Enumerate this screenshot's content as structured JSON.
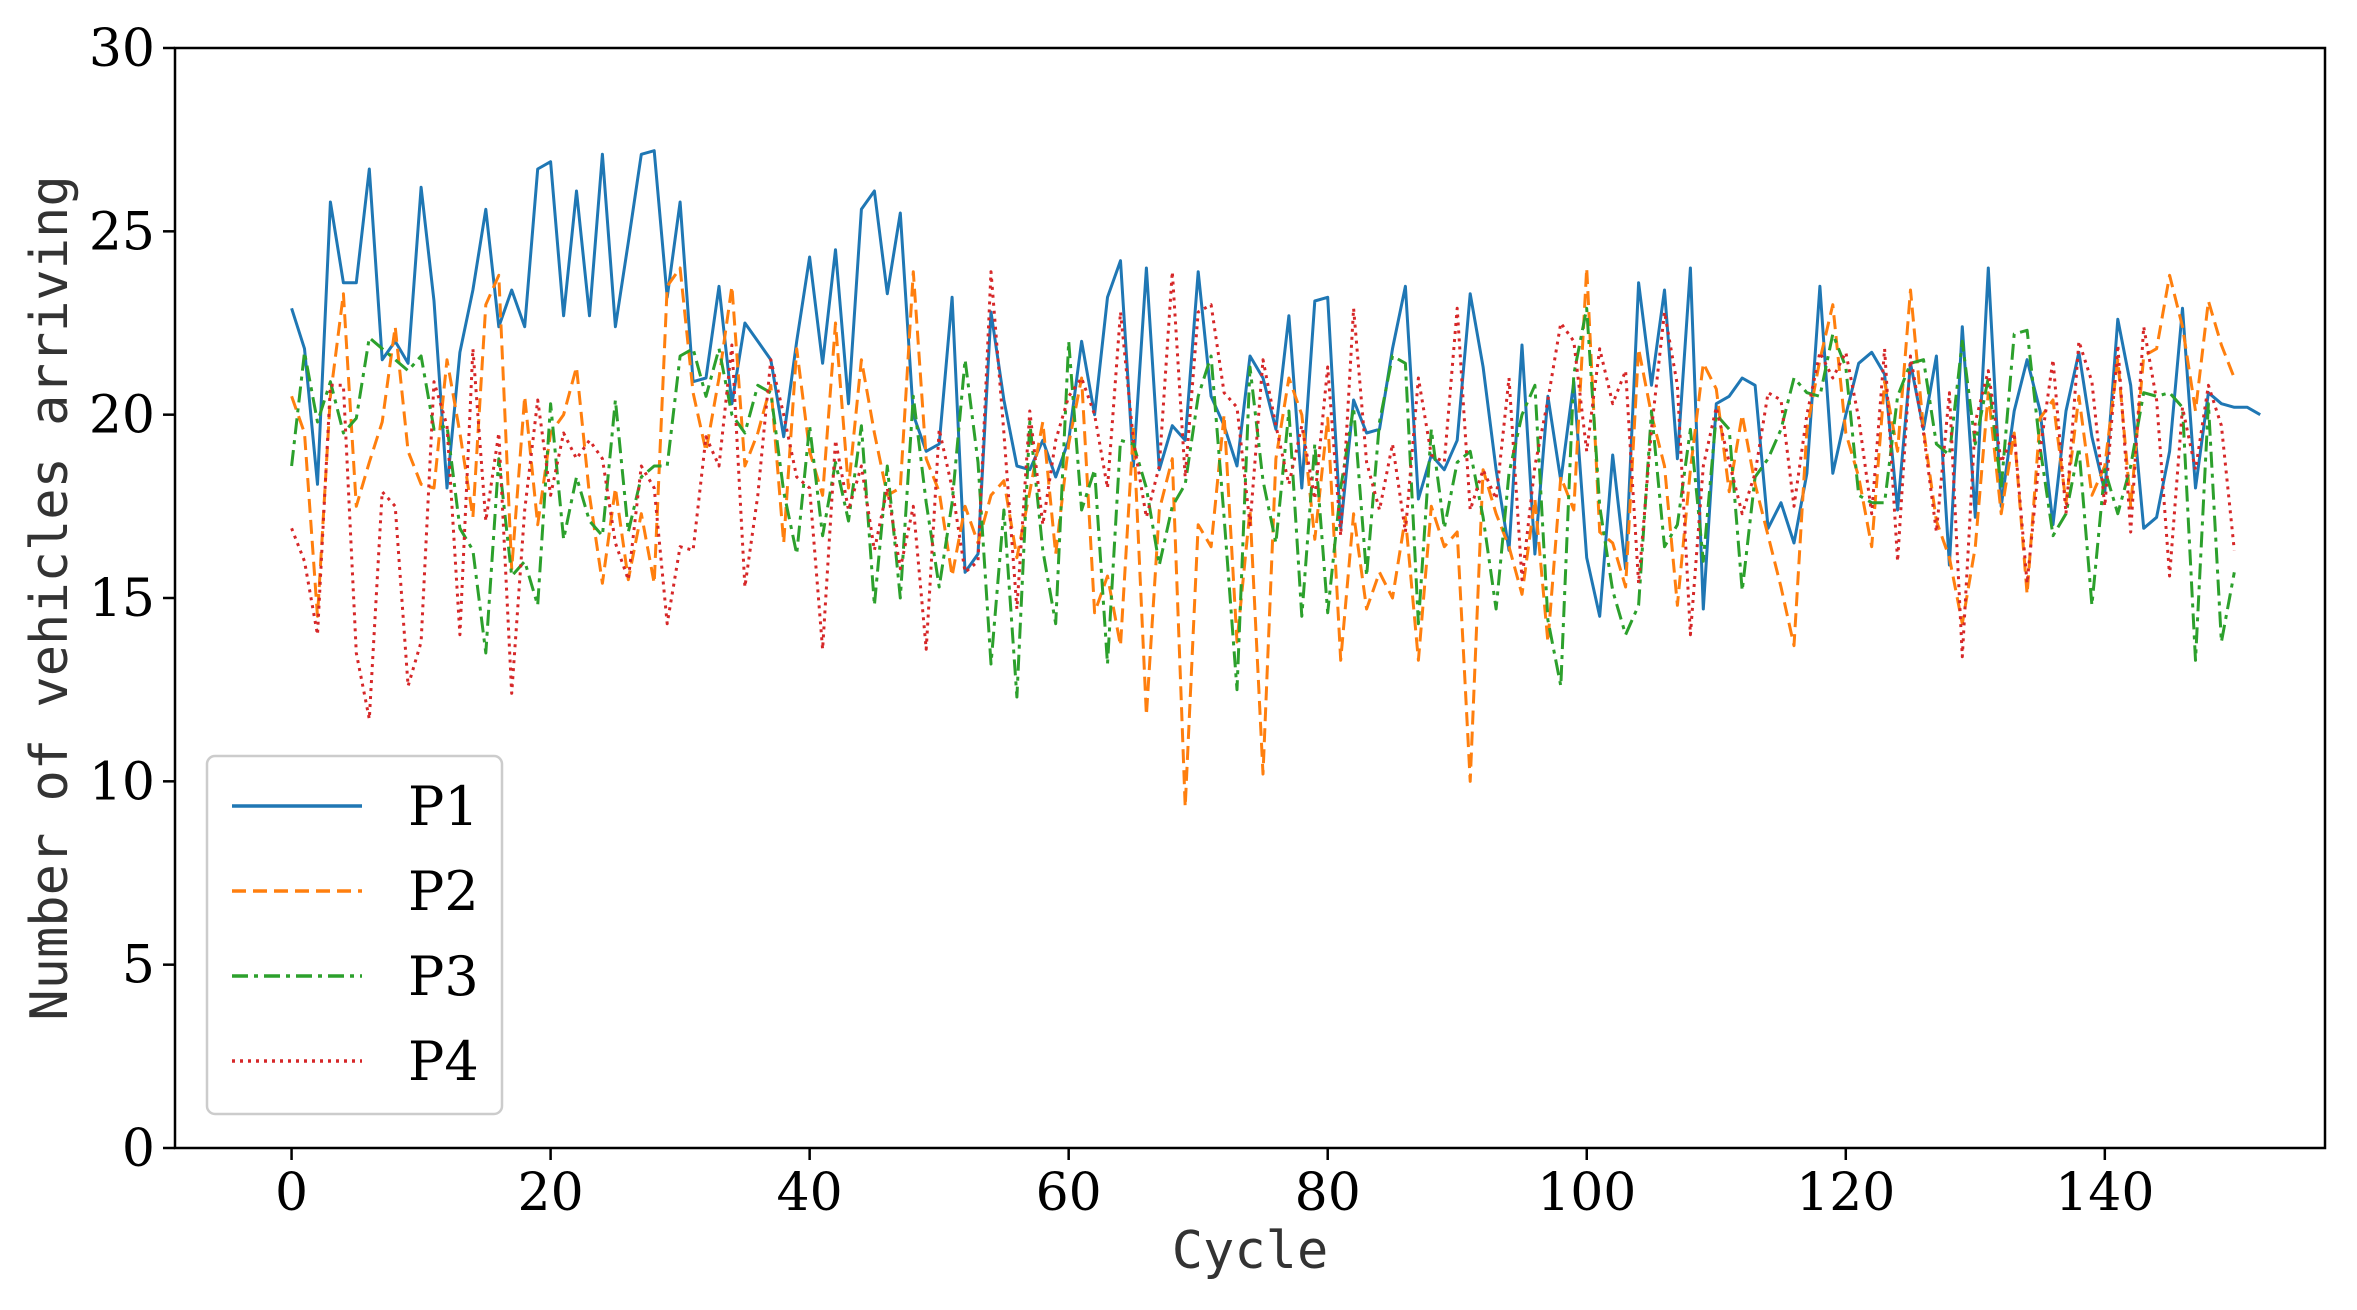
{
  "chart_data": {
    "type": "line",
    "title": "",
    "xlabel": "Cycle",
    "ylabel": "Number of vehicles arriving",
    "xlim": [
      -9,
      157
    ],
    "ylim": [
      0,
      30
    ],
    "xticks": [
      0,
      20,
      40,
      60,
      80,
      100,
      120,
      140
    ],
    "yticks": [
      0,
      5,
      10,
      15,
      20,
      25,
      30
    ],
    "grid": false,
    "legend_position": "lower-left",
    "series": [
      {
        "name": "P1",
        "color": "#1f77b4",
        "style": "solid",
        "values": [
          22.9,
          21.8,
          18.1,
          25.8,
          23.6,
          23.6,
          26.7,
          21.5,
          22.0,
          21.4,
          26.2,
          23.1,
          18.0,
          21.7,
          23.4,
          25.6,
          22.4,
          23.4,
          22.4,
          26.7,
          26.9,
          22.7,
          26.1,
          22.7,
          27.1,
          22.4,
          24.7,
          27.1,
          27.2,
          23.2,
          25.8,
          20.9,
          21.0,
          23.5,
          20.3,
          22.5,
          22.0,
          21.5,
          19.4,
          22.0,
          24.3,
          21.4,
          24.5,
          20.3,
          25.6,
          26.1,
          23.3,
          25.5,
          20.0,
          19.0,
          19.2,
          23.2,
          15.7,
          16.2,
          22.8,
          20.4,
          18.6,
          18.5,
          19.3,
          18.3,
          19.3,
          22.0,
          20.0,
          23.2,
          24.2,
          18.6,
          24.0,
          18.5,
          19.7,
          19.3,
          23.9,
          20.5,
          19.7,
          18.6,
          21.6,
          21.0,
          19.6,
          22.7,
          18.0,
          23.1,
          23.2,
          16.9,
          20.4,
          19.5,
          19.6,
          21.8,
          23.5,
          17.7,
          18.9,
          18.5,
          19.3,
          23.3,
          21.3,
          18.5,
          16.3,
          21.9,
          16.2,
          20.5,
          18.2,
          20.9,
          16.1,
          14.5,
          18.9,
          15.8,
          23.6,
          20.8,
          23.4,
          18.8,
          24.0,
          14.7,
          20.3,
          20.5,
          21.0,
          20.8,
          16.9,
          17.6,
          16.5,
          18.4,
          23.5,
          18.4,
          20.0,
          21.4,
          21.7,
          21.1,
          17.4,
          21.4,
          19.6,
          21.6,
          15.9,
          22.4,
          17.2,
          24.0,
          17.5,
          20.1,
          21.5,
          20.1,
          17.0,
          20.1,
          21.7,
          19.4,
          17.9,
          22.6,
          20.8,
          16.9,
          17.2,
          19.0,
          22.9,
          18.0,
          20.6,
          20.3,
          20.2,
          20.2,
          20.0
        ]
      },
      {
        "name": "P2",
        "color": "#ff7f0e",
        "style": "dashed",
        "values": [
          20.5,
          19.5,
          14.5,
          20.5,
          23.3,
          17.5,
          18.7,
          19.8,
          22.4,
          19.0,
          18.1,
          18.0,
          21.5,
          19.5,
          17.2,
          23.0,
          23.8,
          15.8,
          20.5,
          17.0,
          19.5,
          20.0,
          21.3,
          17.8,
          15.4,
          18.0,
          15.5,
          17.3,
          15.4,
          23.5,
          24.0,
          20.6,
          19.0,
          21.0,
          23.5,
          18.6,
          19.5,
          20.8,
          16.5,
          21.8,
          19.0,
          17.8,
          22.5,
          18.0,
          21.5,
          19.5,
          17.8,
          18.0,
          23.9,
          18.8,
          17.9,
          15.6,
          17.5,
          16.5,
          17.8,
          18.2,
          16.1,
          17.9,
          19.8,
          16.2,
          19.2,
          21.0,
          14.6,
          15.6,
          13.7,
          19.6,
          11.8,
          17.4,
          18.8,
          9.3,
          17.0,
          16.4,
          20.0,
          13.8,
          17.4,
          10.2,
          18.8,
          21.0,
          20.0,
          16.6,
          19.9,
          13.3,
          17.3,
          14.7,
          15.7,
          15.0,
          17.2,
          13.3,
          17.5,
          16.4,
          16.8,
          10.0,
          18.5,
          17.3,
          16.4,
          15.1,
          17.7,
          13.8,
          18.3,
          17.4,
          24.0,
          16.8,
          16.5,
          15.3,
          21.8,
          20.0,
          18.6,
          14.8,
          18.5,
          21.4,
          20.7,
          17.9,
          20.0,
          18.1,
          16.7,
          15.3,
          13.7,
          19.6,
          21.5,
          23.0,
          19.5,
          18.3,
          16.4,
          20.9,
          19.0,
          23.4,
          19.6,
          17.1,
          16.1,
          14.3,
          16.4,
          20.6,
          17.3,
          19.5,
          15.1,
          19.9,
          20.4,
          17.6,
          20.5,
          17.8,
          18.6,
          21.5,
          17.5,
          21.6,
          21.8,
          23.8,
          22.4,
          20.1,
          23.1,
          21.9,
          21.0
        ]
      },
      {
        "name": "P3",
        "color": "#2ca02c",
        "style": "dashdot",
        "values": [
          18.6,
          21.7,
          19.8,
          20.9,
          19.5,
          19.9,
          22.1,
          21.8,
          21.5,
          21.2,
          21.6,
          19.6,
          19.7,
          16.9,
          16.3,
          13.5,
          18.8,
          15.6,
          16.0,
          14.8,
          20.3,
          16.6,
          18.3,
          17.1,
          16.7,
          20.4,
          16.8,
          18.3,
          18.6,
          18.6,
          21.6,
          21.8,
          20.5,
          21.8,
          20.0,
          19.5,
          20.8,
          20.6,
          17.9,
          16.2,
          19.7,
          16.7,
          18.7,
          17.1,
          19.7,
          14.8,
          18.6,
          15.0,
          20.5,
          17.6,
          15.3,
          17.6,
          21.5,
          18.7,
          13.2,
          17.4,
          12.3,
          19.8,
          16.3,
          14.3,
          22.0,
          17.4,
          18.5,
          13.2,
          19.3,
          19.2,
          18.0,
          15.9,
          17.5,
          18.1,
          20.5,
          21.6,
          17.2,
          12.5,
          21.3,
          18.2,
          16.5,
          20.1,
          14.5,
          19.2,
          14.6,
          18.0,
          20.2,
          15.6,
          19.8,
          21.6,
          21.4,
          14.3,
          19.6,
          16.9,
          18.7,
          19.0,
          17.2,
          14.7,
          18.4,
          20.0,
          20.8,
          14.4,
          12.6,
          21.1,
          22.9,
          17.5,
          15.2,
          14.0,
          14.8,
          20.1,
          16.4,
          17.0,
          19.6,
          16.0,
          20.0,
          19.6,
          15.2,
          18.3,
          18.8,
          19.6,
          21.0,
          20.6,
          20.5,
          22.2,
          21.3,
          17.8,
          17.6,
          17.6,
          20.5,
          21.4,
          21.5,
          19.2,
          18.9,
          22.0,
          19.2,
          21.0,
          18.0,
          22.2,
          22.3,
          19.1,
          16.7,
          17.3,
          19.1,
          14.8,
          18.5,
          17.3,
          18.6,
          20.6,
          20.5,
          20.6,
          20.2,
          13.3,
          20.3,
          13.8,
          15.7
        ]
      },
      {
        "name": "P4",
        "color": "#d62728",
        "style": "dotted",
        "values": [
          16.9,
          16.0,
          14.0,
          20.8,
          20.8,
          13.5,
          11.7,
          17.9,
          17.5,
          12.6,
          13.8,
          20.9,
          19.7,
          14.0,
          21.8,
          17.1,
          19.5,
          12.4,
          17.4,
          20.4,
          17.8,
          19.5,
          18.8,
          19.3,
          18.8,
          16.5,
          15.5,
          18.6,
          18.0,
          14.3,
          16.4,
          16.3,
          19.4,
          18.6,
          21.9,
          15.3,
          17.8,
          21.5,
          20.0,
          18.3,
          18.0,
          13.6,
          19.3,
          17.4,
          18.6,
          16.3,
          18.0,
          15.8,
          17.5,
          13.6,
          19.6,
          18.0,
          15.7,
          16.0,
          23.9,
          19.5,
          14.7,
          20.1,
          17.0,
          19.3,
          20.5,
          21.0,
          20.0,
          18.0,
          22.8,
          19.3,
          17.2,
          18.6,
          23.9,
          18.3,
          22.8,
          23.0,
          20.6,
          20.2,
          17.0,
          21.5,
          19.7,
          18.1,
          19.7,
          17.7,
          21.3,
          16.7,
          22.9,
          18.7,
          17.4,
          19.2,
          16.8,
          21.0,
          18.9,
          18.7,
          22.9,
          17.4,
          18.5,
          17.7,
          21.0,
          15.5,
          18.6,
          20.4,
          22.5,
          22.0,
          19.0,
          21.8,
          20.3,
          21.2,
          15.4,
          19.6,
          22.8,
          20.8,
          14.0,
          18.6,
          20.2,
          18.7,
          17.3,
          18.4,
          20.6,
          20.4,
          17.5,
          20.0,
          21.7,
          21.0,
          21.7,
          19.9,
          17.3,
          21.8,
          16.0,
          21.6,
          19.5,
          16.8,
          20.6,
          13.4,
          19.8,
          21.2,
          18.7,
          19.5,
          15.4,
          19.0,
          21.5,
          17.3,
          22.0,
          20.9,
          17.5,
          21.9,
          16.8,
          22.4,
          20.4,
          15.6,
          20.2,
          18.5,
          20.8,
          19.7,
          16.3
        ]
      }
    ]
  }
}
